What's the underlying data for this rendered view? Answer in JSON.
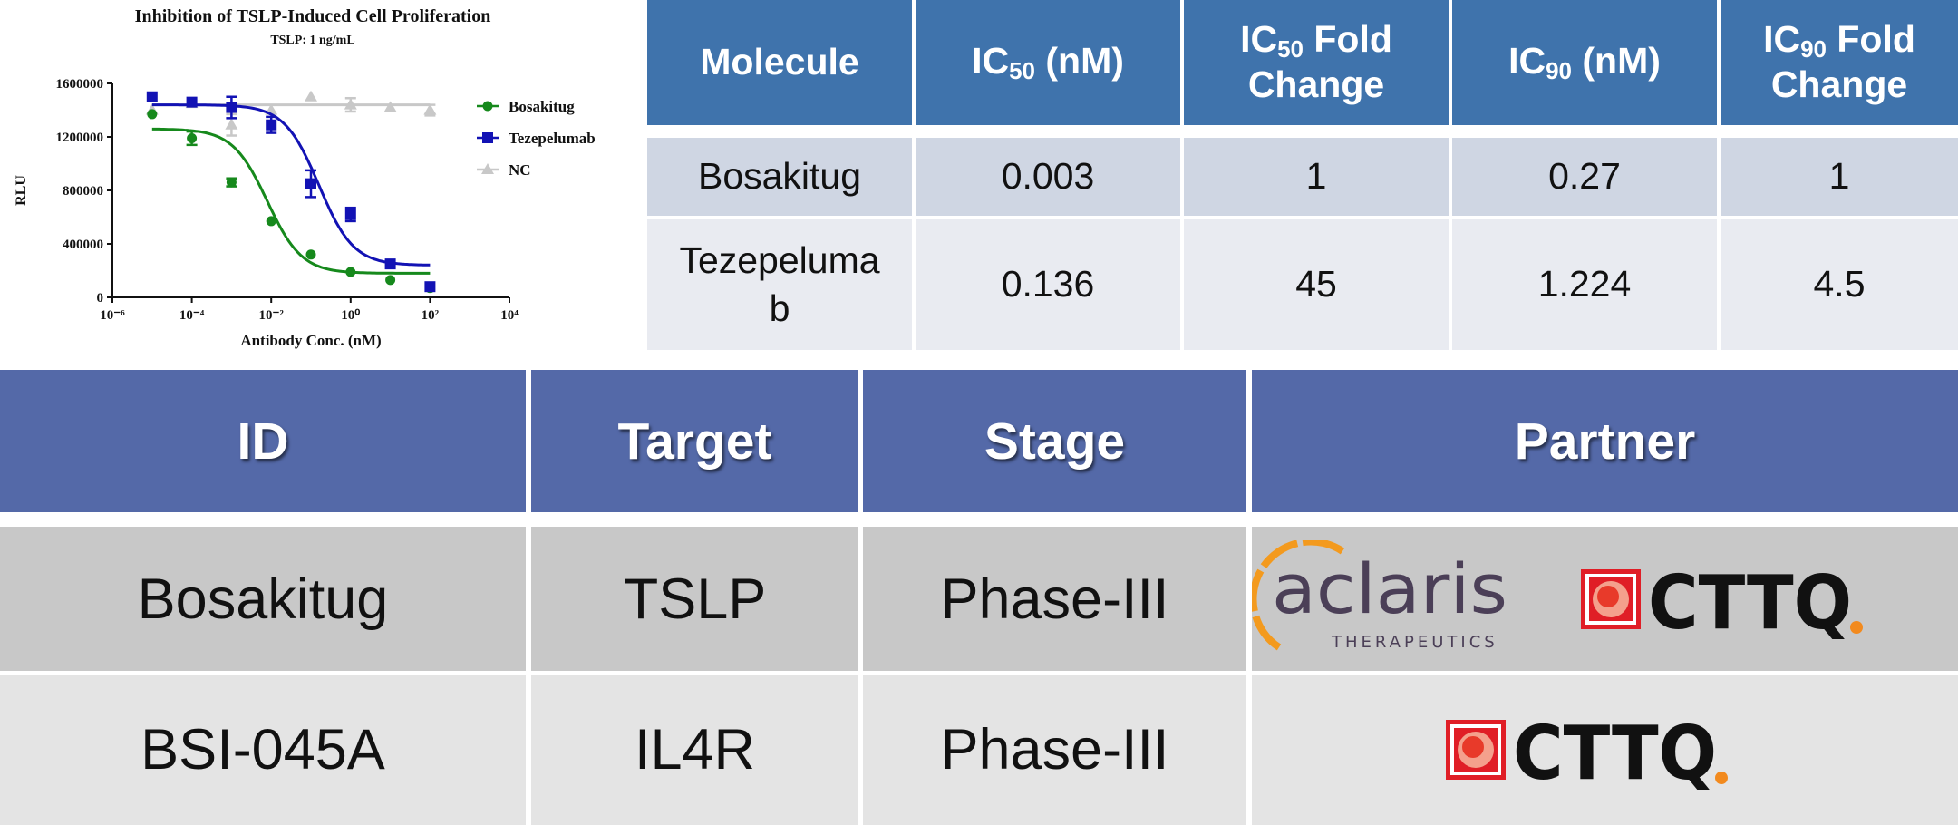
{
  "chart_data": {
    "type": "scatter",
    "title": "Inhibition of TSLP-Induced Cell Proliferation",
    "subtitle": "TSLP: 1 ng/mL",
    "xlabel": "Antibody Conc. (nM)",
    "ylabel": "RLU",
    "xlog": true,
    "xlim": [
      1e-06,
      10000
    ],
    "xticks": [
      {
        "value": 1e-06,
        "label": "10⁻⁶"
      },
      {
        "value": 0.0001,
        "label": "10⁻⁴"
      },
      {
        "value": 0.01,
        "label": "10⁻²"
      },
      {
        "value": 1,
        "label": "10⁰"
      },
      {
        "value": 100,
        "label": "10²"
      },
      {
        "value": 10000,
        "label": "10⁴"
      }
    ],
    "ylim": [
      0,
      1600000
    ],
    "yticks": [
      0,
      400000,
      800000,
      1200000,
      1600000
    ],
    "x": [
      1e-05,
      0.0001,
      0.001,
      0.01,
      0.1,
      1,
      10,
      100
    ],
    "series": [
      {
        "name": "Bosakitug",
        "color": "#16891c",
        "marker": "circle",
        "values": [
          1370000,
          1190000,
          860000,
          570000,
          320000,
          190000,
          130000,
          70000
        ],
        "errors": [
          0,
          50000,
          30000,
          0,
          0,
          0,
          0,
          0
        ],
        "fit": {
          "top": 1260000,
          "bottom": 180000,
          "log_ec50": -2.1,
          "hill": 1.0
        }
      },
      {
        "name": "Tezepelumab",
        "color": "#1212b4",
        "marker": "square",
        "values": [
          1500000,
          1460000,
          1420000,
          1290000,
          850000,
          620000,
          250000,
          80000
        ],
        "errors": [
          0,
          0,
          80000,
          60000,
          100000,
          50000,
          0,
          0
        ],
        "fit": {
          "top": 1440000,
          "bottom": 240000,
          "log_ec50": -0.8,
          "hill": 1.0
        }
      },
      {
        "name": "NC",
        "color": "#c8c8c8",
        "marker": "triangle",
        "values": [
          1400000,
          1450000,
          1290000,
          1400000,
          1500000,
          1440000,
          1420000,
          1400000
        ],
        "errors": [
          0,
          0,
          80000,
          0,
          0,
          50000,
          0,
          40000
        ],
        "fit": {
          "top": 1440000,
          "bottom": 1440000,
          "log_ec50": -2,
          "hill": 1.0
        }
      }
    ]
  },
  "metrics_table": {
    "header": [
      [
        "Molecule"
      ],
      [
        "IC",
        "50",
        " (nM)"
      ],
      [
        "IC",
        "50",
        " Fold Change"
      ],
      [
        "IC",
        "90",
        " (nM)"
      ],
      [
        "IC",
        "90",
        " Fold Change"
      ]
    ],
    "rows": [
      [
        "Bosakitug",
        "0.003",
        "1",
        "0.27",
        "1"
      ],
      [
        "Tezepelumab",
        "0.136",
        "45",
        "1.224",
        "4.5"
      ]
    ]
  },
  "pipeline_table": {
    "header": [
      "ID",
      "Target",
      "Stage",
      "Partner"
    ],
    "rows": [
      {
        "cells": [
          "Bosakitug",
          "TSLP",
          "Phase-III"
        ],
        "partners": [
          {
            "name": "aclaris",
            "tagline": "THERAPEUTICS"
          },
          {
            "name": "CTTQ"
          }
        ]
      },
      {
        "cells": [
          "BSI-045A",
          "IL4R",
          "Phase-III"
        ],
        "partners": [
          {
            "name": "CTTQ"
          }
        ]
      }
    ]
  }
}
